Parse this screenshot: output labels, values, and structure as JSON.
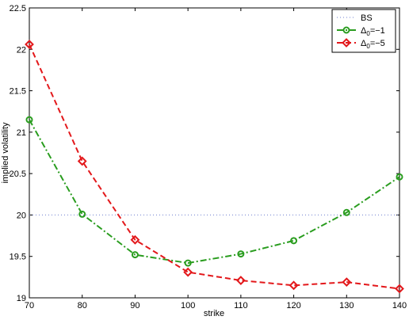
{
  "chart_data": {
    "type": "line",
    "title": "",
    "xlabel": "strike",
    "ylabel": "implied volatility",
    "xlim": [
      70,
      140
    ],
    "ylim": [
      19,
      22.5
    ],
    "xticks": [
      70,
      80,
      90,
      100,
      110,
      120,
      130,
      140
    ],
    "yticks": [
      19,
      19.5,
      20,
      20.5,
      21,
      21.5,
      22,
      22.5
    ],
    "grid": false,
    "legend_position": "top-right",
    "series": [
      {
        "name": "BS",
        "color": "#6f7fcf",
        "line_style": "dotted",
        "marker": "none",
        "x": [
          70,
          140
        ],
        "y": [
          20,
          20
        ]
      },
      {
        "name": "Δ0=−1",
        "legend_base": "Δ",
        "legend_sub": "0",
        "legend_rest": "=−1",
        "color": "#2a9d1f",
        "line_style": "dash-dot",
        "marker": "circle",
        "x": [
          70,
          80,
          90,
          100,
          110,
          120,
          130,
          140
        ],
        "y": [
          21.15,
          20.01,
          19.52,
          19.42,
          19.53,
          19.69,
          20.03,
          20.46
        ]
      },
      {
        "name": "Δ0=−5",
        "legend_base": "Δ",
        "legend_sub": "0",
        "legend_rest": "=−5",
        "color": "#e3181b",
        "line_style": "dashed",
        "marker": "diamond",
        "x": [
          70,
          80,
          90,
          100,
          110,
          120,
          130,
          140
        ],
        "y": [
          22.06,
          20.65,
          19.7,
          19.31,
          19.21,
          19.15,
          19.19,
          19.11
        ]
      }
    ]
  }
}
